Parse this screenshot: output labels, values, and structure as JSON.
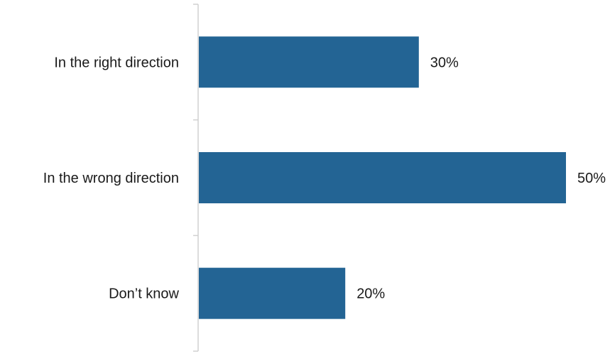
{
  "chart_data": {
    "type": "bar",
    "orientation": "horizontal",
    "categories": [
      "In the right direction",
      "In the wrong direction",
      "Don’t know"
    ],
    "values": [
      30,
      50,
      20
    ],
    "value_labels": [
      "30%",
      "50%",
      "20%"
    ],
    "xlim": [
      0,
      50
    ],
    "grid": false,
    "legend": "none",
    "colors": {
      "bar": "#236494",
      "axis": "#d0d0d0",
      "text": "#1a1a1a"
    }
  }
}
